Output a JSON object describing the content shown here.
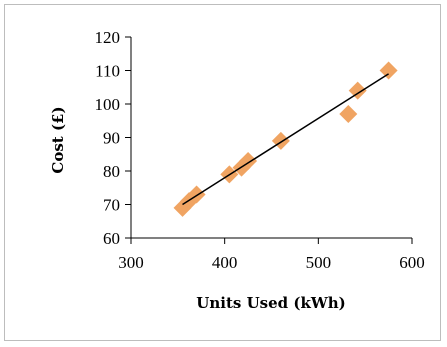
{
  "chart_data": {
    "type": "scatter",
    "title": "",
    "xlabel": "Units Used (kWh)",
    "ylabel": "Cost (£)",
    "xlim": [
      300,
      600
    ],
    "ylim": [
      60,
      120
    ],
    "xticks": [
      "300",
      "400",
      "500",
      "600"
    ],
    "yticks": [
      "60",
      "70",
      "80",
      "90",
      "100",
      "110",
      "120"
    ],
    "grid": false,
    "legend": "none",
    "series": [
      {
        "points": [
          {
            "x": 355,
            "y": 69
          },
          {
            "x": 362,
            "y": 71
          },
          {
            "x": 370,
            "y": 73
          },
          {
            "x": 405,
            "y": 79
          },
          {
            "x": 418,
            "y": 81
          },
          {
            "x": 425,
            "y": 83
          },
          {
            "x": 460,
            "y": 89
          },
          {
            "x": 532,
            "y": 97
          },
          {
            "x": 542,
            "y": 104
          },
          {
            "x": 575,
            "y": 110
          }
        ],
        "color": "#f0a462"
      }
    ],
    "trendline": {
      "x": [
        355,
        575
      ],
      "y": [
        70,
        109
      ],
      "color": "#000000"
    }
  }
}
